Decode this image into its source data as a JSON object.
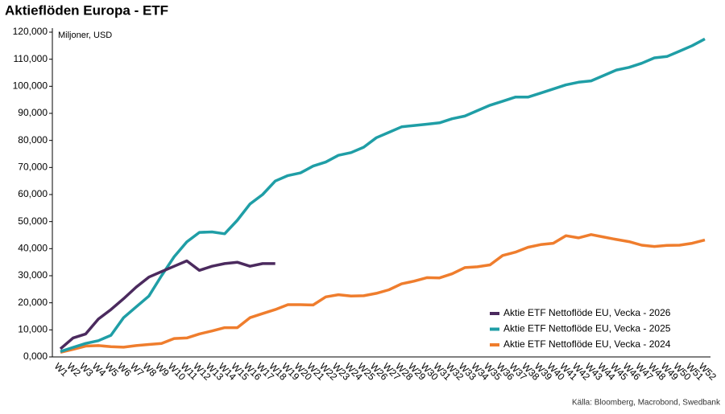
{
  "chart_data": {
    "type": "line",
    "title": "Aktieflöden Europa - ETF",
    "subtitle": "Miljoner, USD",
    "source": "Källa: Bloomberg, Macrobond, Swedbank",
    "categories": [
      "W1",
      "W2",
      "W3",
      "W4",
      "W5",
      "W6",
      "W7",
      "W8",
      "W9",
      "W10",
      "W11",
      "W12",
      "W13",
      "W14",
      "W15",
      "W16",
      "W17",
      "W18",
      "W19",
      "W20",
      "W21",
      "W22",
      "W23",
      "W24",
      "W25",
      "W26",
      "W27",
      "W28",
      "W29",
      "W30",
      "W31",
      "W32",
      "W33",
      "W34",
      "W35",
      "W36",
      "W37",
      "W38",
      "W39",
      "W40",
      "W41",
      "W42",
      "W43",
      "W44",
      "W45",
      "W46",
      "W47",
      "W48",
      "W49",
      "W50",
      "W51",
      "W52"
    ],
    "series": [
      {
        "name": "Aktie ETF Nettoflöde EU, Vecka - 2026",
        "color": "#4b2a5e",
        "values": [
          3000,
          7000,
          8500,
          14000,
          17500,
          21500,
          25800,
          29500,
          31500,
          33500,
          35500,
          32000,
          33500,
          34500,
          35000,
          33500,
          34500,
          34500,
          null,
          null,
          null,
          null,
          null,
          null,
          null,
          null,
          null,
          null,
          null,
          null,
          null,
          null,
          null,
          null,
          null,
          null,
          null,
          null,
          null,
          null,
          null,
          null,
          null,
          null,
          null,
          null,
          null,
          null,
          null,
          null,
          null,
          null
        ]
      },
      {
        "name": "Aktie ETF Nettoflöde EU, Vecka - 2025",
        "color": "#1f9ea6",
        "values": [
          2000,
          3500,
          5000,
          6000,
          8000,
          14500,
          18500,
          22500,
          30000,
          37000,
          42500,
          46000,
          46200,
          45500,
          50500,
          56500,
          60000,
          65000,
          67000,
          68000,
          70500,
          72000,
          74500,
          75500,
          77500,
          81000,
          83000,
          85000,
          85500,
          86000,
          86500,
          88000,
          89000,
          91000,
          93000,
          94500,
          96000,
          96000,
          97500,
          99000,
          100500,
          101500,
          102000,
          104000,
          106000,
          107000,
          108500,
          110500,
          111000,
          113000,
          115000,
          117500
        ]
      },
      {
        "name": "Aktie ETF Nettoflöde EU, Vecka - 2024",
        "color": "#ef7d2d",
        "values": [
          1700,
          2800,
          4000,
          4200,
          3800,
          3600,
          4200,
          4600,
          5000,
          6800,
          7000,
          8500,
          9600,
          10800,
          10800,
          14500,
          16000,
          17500,
          19300,
          19300,
          19200,
          22200,
          23000,
          22500,
          22600,
          23500,
          24800,
          27000,
          28000,
          29300,
          29200,
          30700,
          33000,
          33300,
          34000,
          37500,
          38700,
          40500,
          41500,
          42000,
          44800,
          44000,
          45200,
          44300,
          43400,
          42600,
          41300,
          40800,
          41200,
          41300,
          42000,
          43200
        ]
      }
    ],
    "ylim": [
      0,
      120000
    ],
    "yticks": [
      {
        "value": 0,
        "label": "0,000"
      },
      {
        "value": 10000,
        "label": "10,000"
      },
      {
        "value": 20000,
        "label": "20,000"
      },
      {
        "value": 30000,
        "label": "30,000"
      },
      {
        "value": 40000,
        "label": "40,000"
      },
      {
        "value": 50000,
        "label": "50,000"
      },
      {
        "value": 60000,
        "label": "60,000"
      },
      {
        "value": 70000,
        "label": "70,000"
      },
      {
        "value": 80000,
        "label": "80,000"
      },
      {
        "value": 90000,
        "label": "90,000"
      },
      {
        "value": 100000,
        "label": "100,000"
      },
      {
        "value": 110000,
        "label": "110,000"
      },
      {
        "value": 120000,
        "label": "120,000"
      }
    ],
    "legend": "lower right",
    "grid": false
  }
}
